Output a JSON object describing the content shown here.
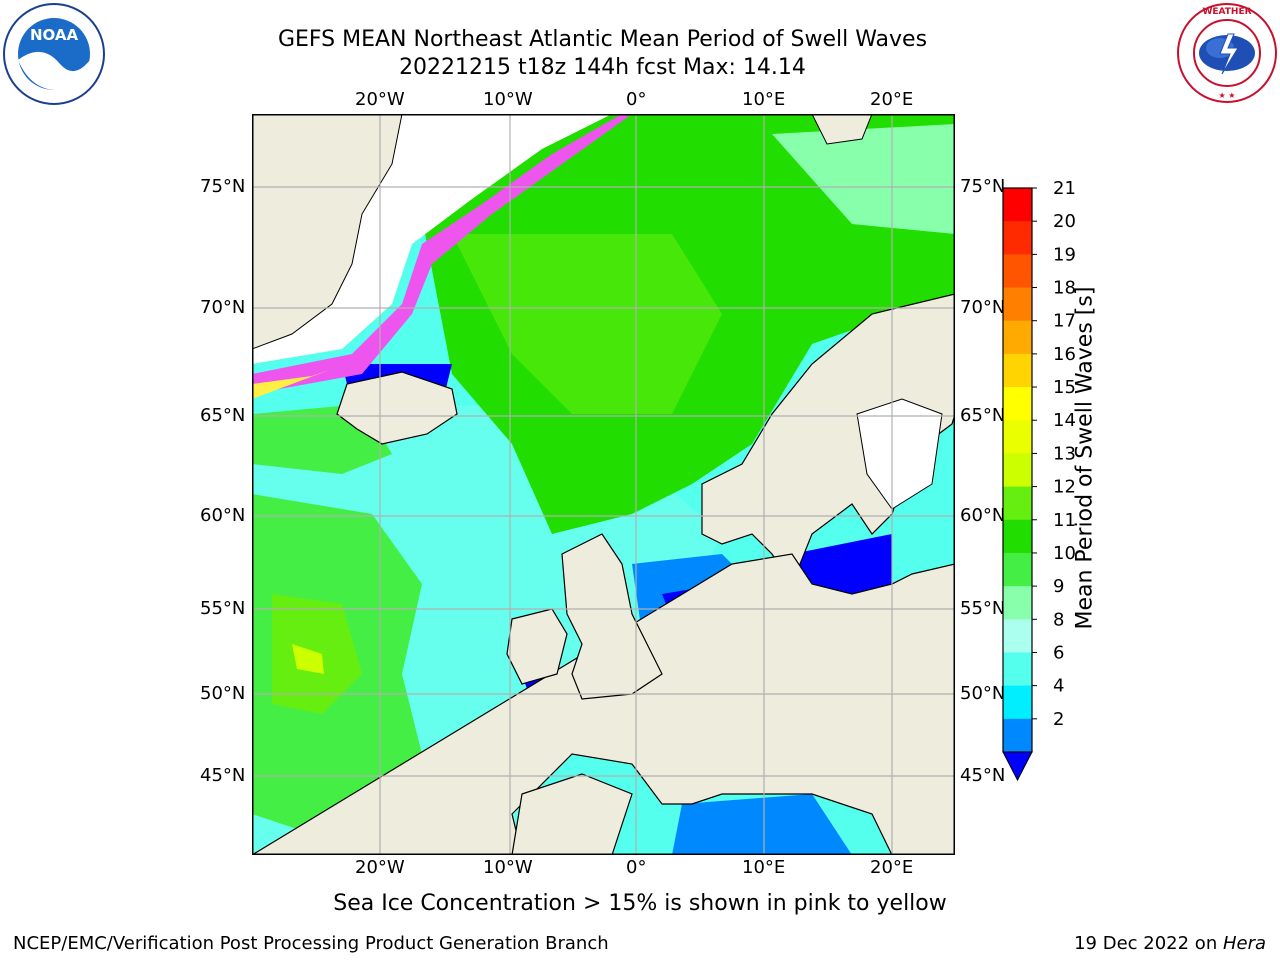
{
  "title": {
    "line1": "GEFS MEAN Northeast Atlantic Mean Period of Swell Waves",
    "line2": "20221215 t18z 144h fcst   Max: 14.14"
  },
  "logos": {
    "left": {
      "name": "noaa-logo",
      "text": "NOAA"
    },
    "right": {
      "name": "national-weather-service-logo",
      "text": "NATIONAL WEATHER SERVICE"
    }
  },
  "map": {
    "lon_top": [
      "20°W",
      "10°W",
      "0°",
      "10°E",
      "20°E"
    ],
    "lon_bottom": [
      "20°W",
      "10°W",
      "0°",
      "10°E",
      "20°E"
    ],
    "lat_left": [
      "75°N",
      "70°N",
      "65°N",
      "60°N",
      "55°N",
      "50°N",
      "45°N"
    ],
    "lat_right": [
      "75°N",
      "70°N",
      "65°N",
      "60°N",
      "55°N",
      "50°N",
      "45°N"
    ],
    "colors": {
      "land": "#eeecdc",
      "ice_pink": "#ee55ee",
      "ice_yellow": "#ffee44",
      "grid": "#b0b0b0",
      "coast": "#000000"
    }
  },
  "colorbar": {
    "label": "Mean Period of Swell Waves [s]",
    "ticks": [
      "21",
      "20",
      "19",
      "18",
      "17",
      "16",
      "15",
      "14",
      "13",
      "12",
      "11",
      "10",
      "9",
      "8",
      "6",
      "4",
      "2"
    ],
    "colors": [
      "#ff0000",
      "#ff2a00",
      "#ff5500",
      "#ff8000",
      "#ffaa00",
      "#ffd400",
      "#ffff00",
      "#eaff00",
      "#ccff00",
      "#66ee11",
      "#22dd00",
      "#44ee44",
      "#88ffaa",
      "#aaffee",
      "#55ffee",
      "#00eeff",
      "#0088ff"
    ],
    "under_color": "#0000ff"
  },
  "caption": "Sea Ice Concentration > 15% is shown in pink to yellow",
  "footer": {
    "left": "NCEP/EMC/Verification Post Processing Product Generation Branch",
    "right_prefix": "19 Dec 2022 on ",
    "right_host": "Hera"
  }
}
